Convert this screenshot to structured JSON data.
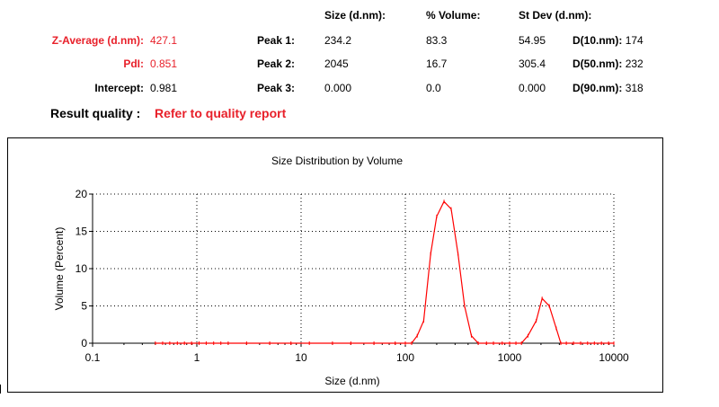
{
  "summary": {
    "headers": {
      "size": "Size (d.nm):",
      "volume": "% Volume:",
      "stdev": "St Dev (d.nm):"
    },
    "z_average": {
      "label": "Z-Average (d.nm):",
      "value": "427.1"
    },
    "pdi": {
      "label": "PdI:",
      "value": "0.851"
    },
    "intercept": {
      "label": "Intercept:",
      "value": "0.981"
    },
    "peaks": [
      {
        "label": "Peak 1:",
        "size": "234.2",
        "volume": "83.3",
        "stdev": "54.95"
      },
      {
        "label": "Peak 2:",
        "size": "2045",
        "volume": "16.7",
        "stdev": "305.4"
      },
      {
        "label": "Peak 3:",
        "size": "0.000",
        "volume": "0.0",
        "stdev": "0.000"
      }
    ],
    "d_values": [
      {
        "label": "D(10.nm):",
        "value": "174"
      },
      {
        "label": "D(50.nm):",
        "value": "232"
      },
      {
        "label": "D(90.nm):",
        "value": "318"
      }
    ],
    "result_quality": {
      "label": "Result quality :",
      "value": "Refer to quality report"
    }
  },
  "colors": {
    "highlight": "#e8202a",
    "curve": "#ff0000",
    "axis": "#000000"
  },
  "chart_data": {
    "type": "line",
    "title": "Size Distribution by Volume",
    "xlabel": "Size (d.nm)",
    "ylabel": "Volume (Percent)",
    "x_scale": "log",
    "xlim": [
      0.1,
      10000
    ],
    "ylim": [
      0,
      20
    ],
    "x_ticks": [
      "0.1",
      "1",
      "10",
      "100",
      "1000",
      "10000"
    ],
    "y_ticks": [
      "0",
      "5",
      "10",
      "15",
      "20"
    ],
    "grid": true,
    "series": [
      {
        "x": [
          0.4,
          0.47,
          0.55,
          0.65,
          0.76,
          0.89,
          1.05,
          1.23,
          1.45,
          1.7,
          2,
          3,
          5,
          8,
          12,
          20,
          30,
          50,
          80,
          100,
          115,
          130,
          150,
          175,
          200,
          235,
          275,
          320,
          370,
          430,
          500,
          600,
          700,
          850,
          1000,
          1150,
          1300,
          1500,
          1800,
          2050,
          2400,
          2800,
          3100,
          3500,
          4100,
          4800,
          5600,
          6500,
          7600,
          8900,
          10000
        ],
        "y": [
          0,
          0,
          0,
          0,
          0,
          0,
          0,
          0,
          0,
          0,
          0,
          0,
          0,
          0,
          0,
          0,
          0,
          0,
          0,
          0,
          0,
          1,
          3,
          12,
          17,
          19,
          18,
          12,
          5,
          1,
          0,
          0,
          0,
          0,
          0,
          0,
          0,
          1,
          3,
          6,
          5,
          2,
          0,
          0,
          0,
          0,
          0,
          0,
          0,
          0,
          0
        ]
      }
    ]
  }
}
